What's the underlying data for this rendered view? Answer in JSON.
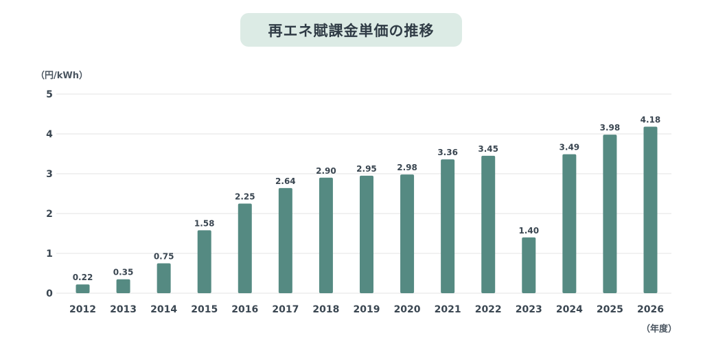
{
  "chart_data": {
    "type": "bar",
    "title": "再エネ賦課金単価の推移",
    "ylabel": "（円/kWh）",
    "xlabel": "（年度）",
    "categories": [
      "2012",
      "2013",
      "2014",
      "2015",
      "2016",
      "2017",
      "2018",
      "2019",
      "2020",
      "2021",
      "2022",
      "2023",
      "2024",
      "2025",
      "2026"
    ],
    "values": [
      0.22,
      0.35,
      0.75,
      1.58,
      2.25,
      2.64,
      2.9,
      2.95,
      2.98,
      3.36,
      3.45,
      1.4,
      3.49,
      3.98,
      4.18
    ],
    "value_labels": [
      "0.22",
      "0.35",
      "0.75",
      "1.58",
      "2.25",
      "2.64",
      "2.90",
      "2.95",
      "2.98",
      "3.36",
      "3.45",
      "1.40",
      "3.49",
      "3.98",
      "4.18"
    ],
    "yticks": [
      "0",
      "1",
      "2",
      "3",
      "4",
      "5"
    ],
    "ylim": [
      0,
      5
    ],
    "grid": true,
    "legend": "none",
    "colors": {
      "bar": "#558a82",
      "grid": "#e3e3e3",
      "title_bg": "#dcebe5",
      "text": "#3a4651"
    }
  }
}
